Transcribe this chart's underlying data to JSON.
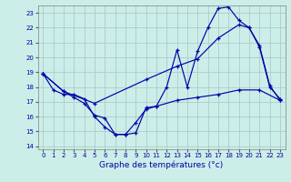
{
  "title": "Graphe des températures (°c)",
  "bg_color": "#cceee8",
  "grid_color": "#aacccc",
  "line_color": "#0000aa",
  "ylim": [
    13.8,
    23.5
  ],
  "xlim": [
    -0.5,
    23.5
  ],
  "yticks": [
    14,
    15,
    16,
    17,
    18,
    19,
    20,
    21,
    22,
    23
  ],
  "xticks": [
    0,
    1,
    2,
    3,
    4,
    5,
    6,
    7,
    8,
    9,
    10,
    11,
    12,
    13,
    14,
    15,
    16,
    17,
    18,
    19,
    20,
    21,
    22,
    23
  ],
  "series": [
    {
      "x": [
        0,
        1,
        2,
        3,
        4,
        5,
        6,
        7,
        8,
        9,
        10,
        11,
        12,
        13,
        14,
        15,
        16,
        17,
        18,
        19,
        20,
        21,
        22,
        23
      ],
      "y": [
        18.9,
        17.8,
        17.5,
        17.5,
        17.2,
        16.0,
        15.3,
        14.8,
        14.8,
        14.9,
        16.6,
        16.7,
        18.0,
        20.5,
        18.0,
        20.4,
        22.0,
        23.3,
        23.4,
        22.5,
        22.0,
        20.8,
        18.1,
        17.1
      ]
    },
    {
      "x": [
        0,
        2,
        5,
        10,
        13,
        15,
        17,
        19,
        20,
        21,
        22,
        23
      ],
      "y": [
        18.9,
        17.7,
        16.9,
        18.5,
        19.4,
        19.9,
        21.3,
        22.2,
        22.0,
        20.7,
        18.0,
        17.2
      ]
    },
    {
      "x": [
        0,
        2,
        3,
        4,
        5,
        6,
        7,
        8,
        9,
        10,
        11,
        13,
        15,
        17,
        19,
        21,
        23
      ],
      "y": [
        18.9,
        17.7,
        17.3,
        16.9,
        16.1,
        15.9,
        14.8,
        14.8,
        15.6,
        16.5,
        16.7,
        17.1,
        17.3,
        17.5,
        17.8,
        17.8,
        17.1
      ]
    }
  ]
}
